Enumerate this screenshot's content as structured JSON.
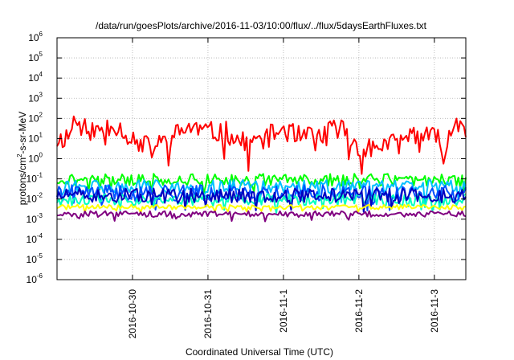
{
  "chart_data": {
    "type": "line",
    "title": "/data/run/goesPlots/archive/2016-11-03/10:00/flux/../flux/5daysEarthFluxes.txt",
    "xlabel": "Coordinated Universal Time (UTC)",
    "ylabel": {
      "pre": "protons/cm",
      "sup": "2",
      "post": "-s-sr-MeV"
    },
    "y_scale": "log",
    "ylim": [
      1e-06,
      1000000.0
    ],
    "y_ticks": [
      {
        "value": 1e-06,
        "base": "10",
        "exp": "-6"
      },
      {
        "value": 1e-05,
        "base": "10",
        "exp": "-5"
      },
      {
        "value": 0.0001,
        "base": "10",
        "exp": "-4"
      },
      {
        "value": 0.001,
        "base": "10",
        "exp": "-3"
      },
      {
        "value": 0.01,
        "base": "10",
        "exp": "-2"
      },
      {
        "value": 0.1,
        "base": "10",
        "exp": "-1"
      },
      {
        "value": 1,
        "base": "10",
        "exp": "0"
      },
      {
        "value": 10,
        "base": "10",
        "exp": "1"
      },
      {
        "value": 100,
        "base": "10",
        "exp": "2"
      },
      {
        "value": 1000,
        "base": "10",
        "exp": "3"
      },
      {
        "value": 10000,
        "base": "10",
        "exp": "4"
      },
      {
        "value": 100000,
        "base": "10",
        "exp": "5"
      },
      {
        "value": 1000000,
        "base": "10",
        "exp": "6"
      }
    ],
    "xlim": [
      "2016-10-29T00:00",
      "2016-11-03T10:00"
    ],
    "x_ticks": [
      {
        "value": "2016-10-30T00:00",
        "label": "2016-10-30"
      },
      {
        "value": "2016-10-31T00:00",
        "label": "2016-10-31"
      },
      {
        "value": "2016-11-01T00:00",
        "label": "2016-11-1"
      },
      {
        "value": "2016-11-02T00:00",
        "label": "2016-11-2"
      },
      {
        "value": "2016-11-03T00:00",
        "label": "2016-11-3"
      }
    ],
    "grid": true,
    "series": [
      {
        "color": "#ff0000",
        "base": 15,
        "noise": 0.55,
        "seed": 11,
        "x": [
          "2016-10-29T00:00",
          "2016-10-29T04:00",
          "2016-10-29T06:00",
          "2016-10-29T09:00",
          "2016-10-29T12:00",
          "2016-10-29T18:00",
          "2016-10-30T00:00",
          "2016-10-30T06:00",
          "2016-10-30T12:00",
          "2016-10-30T18:00",
          "2016-10-31T00:00",
          "2016-10-31T06:00",
          "2016-10-31T12:00",
          "2016-10-31T18:00",
          "2016-11-01T00:00",
          "2016-11-01T06:00",
          "2016-11-01T12:00",
          "2016-11-01T18:00",
          "2016-11-02T00:00",
          "2016-11-02T06:00",
          "2016-11-02T12:00",
          "2016-11-02T18:00",
          "2016-11-03T00:00",
          "2016-11-03T04:00",
          "2016-11-03T07:00",
          "2016-11-03T10:00"
        ],
        "y": [
          8,
          15,
          200,
          40,
          20,
          60,
          10,
          3,
          10,
          40,
          20,
          20,
          5,
          10,
          30,
          10,
          15,
          40,
          3,
          5,
          5,
          20,
          10,
          5,
          100,
          30
        ]
      },
      {
        "color": "#00ff00",
        "base": 0.09,
        "noise": 0.3,
        "seed": 21,
        "x": [
          "2016-10-29T00:00",
          "2016-11-03T10:00"
        ],
        "y": [
          0.09,
          0.09
        ]
      },
      {
        "color": "#00c0ff",
        "base": 0.04,
        "noise": 0.35,
        "seed": 31,
        "x": [
          "2016-10-29T00:00",
          "2016-11-03T10:00"
        ],
        "y": [
          0.04,
          0.04
        ]
      },
      {
        "color": "#0050ff",
        "base": 0.02,
        "noise": 0.4,
        "seed": 41,
        "x": [
          "2016-10-29T00:00",
          "2016-11-03T10:00"
        ],
        "y": [
          0.02,
          0.02
        ]
      },
      {
        "color": "#00ffc0",
        "base": 0.009,
        "noise": 0.3,
        "seed": 61,
        "x": [
          "2016-10-29T00:00",
          "2016-11-03T10:00"
        ],
        "y": [
          0.009,
          0.009
        ]
      },
      {
        "color": "#0000c0",
        "base": 0.015,
        "noise": 0.35,
        "seed": 51,
        "x": [
          "2016-10-29T00:00",
          "2016-11-03T10:00"
        ],
        "y": [
          0.015,
          0.015
        ]
      },
      {
        "color": "#ffff00",
        "base": 0.004,
        "noise": 0.12,
        "seed": 71,
        "x": [
          "2016-10-29T00:00",
          "2016-11-03T10:00"
        ],
        "y": [
          0.004,
          0.004
        ]
      },
      {
        "color": "#800080",
        "base": 0.0018,
        "noise": 0.15,
        "seed": 81,
        "x": [
          "2016-10-29T00:00",
          "2016-11-03T10:00"
        ],
        "y": [
          0.0018,
          0.0018
        ]
      }
    ]
  }
}
